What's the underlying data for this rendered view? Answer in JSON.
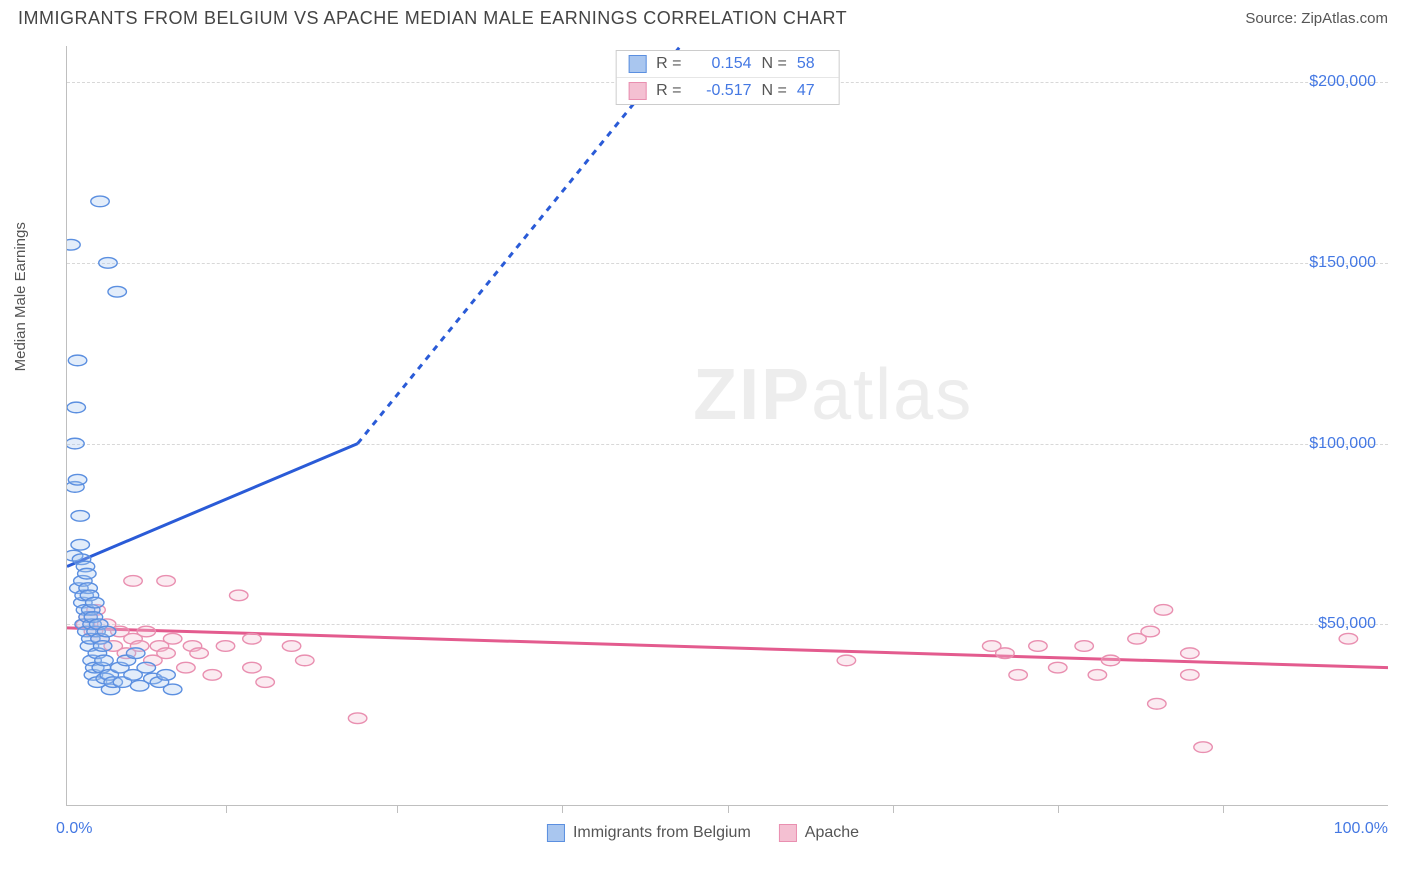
{
  "title": "IMMIGRANTS FROM BELGIUM VS APACHE MEDIAN MALE EARNINGS CORRELATION CHART",
  "source_prefix": "Source: ",
  "source_name": "ZipAtlas.com",
  "yaxis_label": "Median Male Earnings",
  "watermark_bold": "ZIP",
  "watermark_rest": "atlas",
  "chart": {
    "type": "scatter",
    "xlim": [
      0,
      100
    ],
    "ylim": [
      0,
      210000
    ],
    "xtick_left": "0.0%",
    "xtick_right": "100.0%",
    "xticks_minor": [
      12,
      25,
      37.5,
      50,
      62.5,
      75,
      87.5
    ],
    "yticks": [
      {
        "v": 50000,
        "label": "$50,000"
      },
      {
        "v": 100000,
        "label": "$100,000"
      },
      {
        "v": 150000,
        "label": "$150,000"
      },
      {
        "v": 200000,
        "label": "$200,000"
      }
    ],
    "grid_color": "#d8d8d8",
    "background": "#ffffff",
    "marker_radius": 7,
    "marker_stroke_width": 1.4,
    "marker_fill_opacity": 0.32,
    "series": [
      {
        "name": "Immigrants from Belgium",
        "key": "belgium",
        "color_stroke": "#5b8fe0",
        "color_fill": "#a9c6ef",
        "R": "0.154",
        "N": "58",
        "points": [
          [
            0.3,
            155000
          ],
          [
            0.5,
            69000
          ],
          [
            0.6,
            100000
          ],
          [
            0.6,
            88000
          ],
          [
            0.7,
            110000
          ],
          [
            0.8,
            123000
          ],
          [
            0.8,
            90000
          ],
          [
            0.9,
            60000
          ],
          [
            1.0,
            80000
          ],
          [
            1.0,
            72000
          ],
          [
            1.1,
            68000
          ],
          [
            1.2,
            62000
          ],
          [
            1.2,
            56000
          ],
          [
            1.3,
            58000
          ],
          [
            1.3,
            50000
          ],
          [
            1.4,
            66000
          ],
          [
            1.4,
            54000
          ],
          [
            1.5,
            64000
          ],
          [
            1.5,
            48000
          ],
          [
            1.6,
            60000
          ],
          [
            1.6,
            52000
          ],
          [
            1.7,
            44000
          ],
          [
            1.7,
            58000
          ],
          [
            1.8,
            46000
          ],
          [
            1.8,
            54000
          ],
          [
            1.9,
            50000
          ],
          [
            1.9,
            40000
          ],
          [
            2.0,
            52000
          ],
          [
            2.0,
            36000
          ],
          [
            2.1,
            56000
          ],
          [
            2.1,
            38000
          ],
          [
            2.2,
            48000
          ],
          [
            2.3,
            42000
          ],
          [
            2.3,
            34000
          ],
          [
            2.4,
            50000
          ],
          [
            2.5,
            46000
          ],
          [
            2.5,
            167000
          ],
          [
            2.6,
            38000
          ],
          [
            2.7,
            44000
          ],
          [
            2.8,
            40000
          ],
          [
            2.9,
            35000
          ],
          [
            3.0,
            48000
          ],
          [
            3.1,
            150000
          ],
          [
            3.2,
            36000
          ],
          [
            3.3,
            32000
          ],
          [
            3.5,
            34000
          ],
          [
            3.8,
            142000
          ],
          [
            4.0,
            38000
          ],
          [
            4.2,
            34000
          ],
          [
            4.5,
            40000
          ],
          [
            5.0,
            36000
          ],
          [
            5.2,
            42000
          ],
          [
            5.5,
            33000
          ],
          [
            6.0,
            38000
          ],
          [
            6.5,
            35000
          ],
          [
            7.0,
            34000
          ],
          [
            7.5,
            36000
          ],
          [
            8.0,
            32000
          ]
        ],
        "trend": {
          "x1": 0,
          "y1": 66000,
          "x2": 22,
          "y2": 100000
        },
        "trend_dash": {
          "x1": 22,
          "y1": 100000,
          "x2": 52,
          "y2": 235000
        },
        "trend_color": "#2a5bd7",
        "trend_width": 3
      },
      {
        "name": "Apache",
        "key": "apache",
        "color_stroke": "#e98fb0",
        "color_fill": "#f4c0d2",
        "R": "-0.517",
        "N": "47",
        "points": [
          [
            1.4,
            50000
          ],
          [
            1.6,
            52000
          ],
          [
            2.0,
            48000
          ],
          [
            2.2,
            54000
          ],
          [
            2.5,
            46000
          ],
          [
            3.0,
            50000
          ],
          [
            3.5,
            44000
          ],
          [
            4.0,
            48000
          ],
          [
            4.5,
            42000
          ],
          [
            5.0,
            46000
          ],
          [
            5.0,
            62000
          ],
          [
            5.5,
            44000
          ],
          [
            6.0,
            48000
          ],
          [
            6.5,
            40000
          ],
          [
            7.0,
            44000
          ],
          [
            7.5,
            62000
          ],
          [
            7.5,
            42000
          ],
          [
            8.0,
            46000
          ],
          [
            9.0,
            38000
          ],
          [
            9.5,
            44000
          ],
          [
            10.0,
            42000
          ],
          [
            11.0,
            36000
          ],
          [
            12.0,
            44000
          ],
          [
            13.0,
            58000
          ],
          [
            14.0,
            38000
          ],
          [
            14.0,
            46000
          ],
          [
            15.0,
            34000
          ],
          [
            17.0,
            44000
          ],
          [
            18.0,
            40000
          ],
          [
            22.0,
            24000
          ],
          [
            59.0,
            40000
          ],
          [
            70.0,
            44000
          ],
          [
            71.0,
            42000
          ],
          [
            72.0,
            36000
          ],
          [
            73.5,
            44000
          ],
          [
            75.0,
            38000
          ],
          [
            77.0,
            44000
          ],
          [
            78.0,
            36000
          ],
          [
            79.0,
            40000
          ],
          [
            81.0,
            46000
          ],
          [
            82.0,
            48000
          ],
          [
            82.5,
            28000
          ],
          [
            83.0,
            54000
          ],
          [
            85.0,
            42000
          ],
          [
            85.0,
            36000
          ],
          [
            86.0,
            16000
          ],
          [
            97.0,
            46000
          ]
        ],
        "trend": {
          "x1": 0,
          "y1": 49000,
          "x2": 100,
          "y2": 38000
        },
        "trend_color": "#e35b8e",
        "trend_width": 3
      }
    ]
  },
  "legend_top": {
    "r_label": "R =",
    "n_label": "N ="
  }
}
